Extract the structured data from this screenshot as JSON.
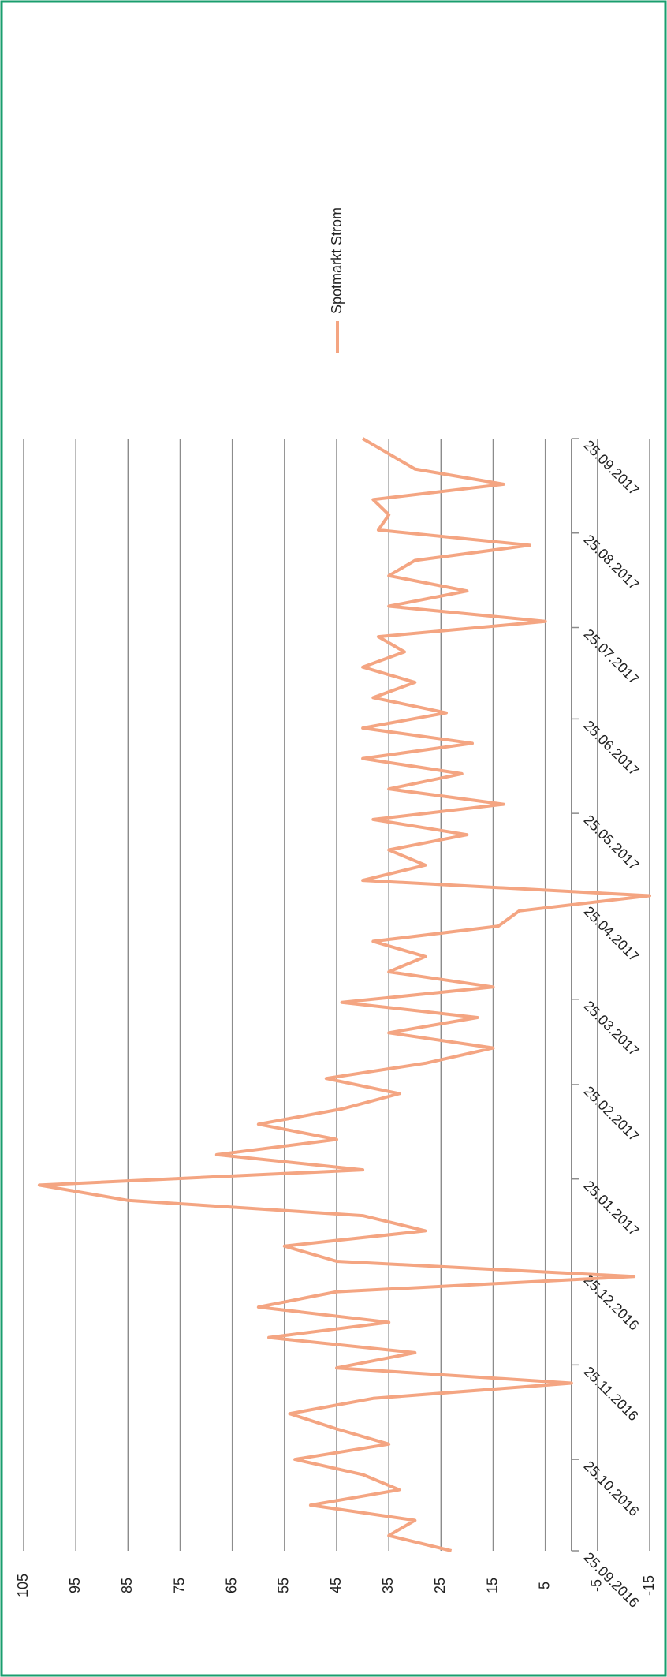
{
  "chart_data": {
    "type": "line",
    "x": [
      "25.09.2016",
      "30.09.2016",
      "05.10.2016",
      "10.10.2016",
      "15.10.2016",
      "20.10.2016",
      "25.10.2016",
      "30.10.2016",
      "04.11.2016",
      "09.11.2016",
      "14.11.2016",
      "19.11.2016",
      "24.11.2016",
      "29.11.2016",
      "04.12.2016",
      "09.12.2016",
      "14.12.2016",
      "19.12.2016",
      "24.12.2016",
      "29.12.2016",
      "03.01.2017",
      "08.01.2017",
      "13.01.2017",
      "18.01.2017",
      "23.01.2017",
      "28.01.2017",
      "02.02.2017",
      "07.02.2017",
      "12.02.2017",
      "17.02.2017",
      "22.02.2017",
      "27.02.2017",
      "04.03.2017",
      "09.03.2017",
      "14.03.2017",
      "19.03.2017",
      "24.03.2017",
      "29.03.2017",
      "03.04.2017",
      "08.04.2017",
      "13.04.2017",
      "18.04.2017",
      "23.04.2017",
      "28.04.2017",
      "03.05.2017",
      "08.05.2017",
      "13.05.2017",
      "18.05.2017",
      "23.05.2017",
      "28.05.2017",
      "02.06.2017",
      "07.06.2017",
      "12.06.2017",
      "17.06.2017",
      "22.06.2017",
      "27.06.2017",
      "02.07.2017",
      "07.07.2017",
      "12.07.2017",
      "17.07.2017",
      "22.07.2017",
      "27.07.2017",
      "01.08.2017",
      "06.08.2017",
      "11.08.2017",
      "16.08.2017",
      "21.08.2017",
      "26.08.2017",
      "31.08.2017",
      "05.09.2017",
      "10.09.2017",
      "15.09.2017",
      "20.09.2017",
      "25.09.2017"
    ],
    "series": [
      {
        "name": "Spotmarkt Strom",
        "color": "#f4a582",
        "values": [
          23,
          35,
          30,
          50,
          33,
          40,
          53,
          35,
          45,
          54,
          38,
          0,
          45,
          30,
          58,
          35,
          60,
          45,
          -12,
          45,
          55,
          28,
          40,
          85,
          102,
          40,
          68,
          45,
          60,
          44,
          33,
          47,
          28,
          15,
          35,
          18,
          44,
          15,
          35,
          28,
          38,
          14,
          10,
          -15,
          40,
          28,
          35,
          20,
          38,
          13,
          35,
          21,
          40,
          19,
          40,
          24,
          38,
          30,
          40,
          32,
          37,
          5,
          35,
          20,
          35,
          30,
          8,
          37,
          35,
          38,
          13,
          30,
          35,
          40
        ]
      }
    ],
    "xlim": [
      "25.09.2016",
      "25.09.2017"
    ],
    "xticks": [
      "25.09.2016",
      "25.10.2016",
      "25.11.2016",
      "25.12.2016",
      "25.01.2017",
      "25.02.2017",
      "25.03.2017",
      "25.04.2017",
      "25.05.2017",
      "25.06.2017",
      "25.07.2017",
      "25.08.2017",
      "25.09.2017"
    ],
    "ylim": [
      -15,
      105
    ],
    "yticks": [
      -15,
      -5,
      5,
      15,
      25,
      35,
      45,
      55,
      65,
      75,
      85,
      95,
      105
    ],
    "grid": true
  }
}
